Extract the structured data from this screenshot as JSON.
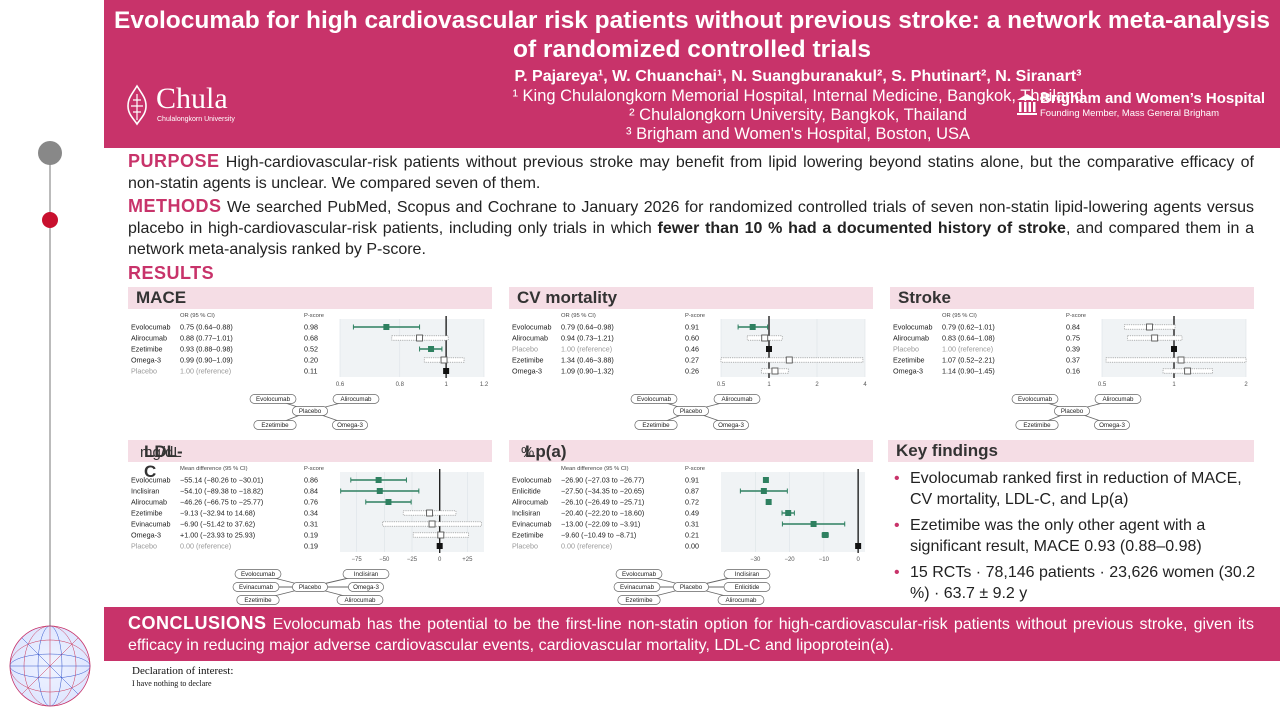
{
  "header": {
    "title": "Evolocumab for high cardiovascular risk patients without previous stroke: a network meta-analysis of randomized controlled trials",
    "authors": "P. Pajareya¹, W. Chuanchai¹, N. Suangburanakul², S. Phutinart², N. Siranart³",
    "affiliations": [
      "¹ King Chulalongkorn Memorial Hospital, Internal Medicine, Bangkok, Thailand",
      "² Chulalongkorn University, Bangkok, Thailand",
      "³ Brigham and Women's Hospital, Boston, USA"
    ],
    "logo_left": {
      "name": "Chula",
      "sub": "Chulalongkorn University"
    },
    "logo_right": {
      "name": "Brigham and Women’s Hospital",
      "sub": "Founding Member, Mass General Brigham"
    }
  },
  "purpose": {
    "heading": "PURPOSE",
    "text": "High-cardiovascular-risk patients without previous stroke may benefit from lipid lowering beyond statins alone, but the comparative efficacy of non-statin agents is unclear. We compared seven of them."
  },
  "methods": {
    "heading": "METHODS",
    "text_a": "We searched PubMed, Scopus and Cochrane to January 2026 for randomized controlled trials of seven non-statin lipid-lowering agents versus placebo in high-cardiovascular-risk patients, including only trials in which ",
    "text_bold": "fewer than 10 % had a documented history of stroke",
    "text_b": ", and compared them in a network meta-analysis ranked by P-score."
  },
  "results_heading": "RESULTS",
  "colors": {
    "accent": "#c8336a",
    "panel_header": "#f5dde5",
    "significant": "#2e8060",
    "nonsignificant": "#888888"
  },
  "chart_data": [
    {
      "id": "mace",
      "type": "forest",
      "title": "MACE",
      "unit": "",
      "col_est": "OR (95 % CI)",
      "col_p": "P-score",
      "scale": "log",
      "xlim": [
        0.6,
        1.2
      ],
      "ref": 1,
      "ticks": [
        0.6,
        0.8,
        1,
        1.2
      ],
      "rows": [
        {
          "label": "Evolocumab",
          "est": 0.75,
          "lo": 0.64,
          "hi": 0.88,
          "text": "0.75 (0.64–0.88)",
          "p": "0.98",
          "sig": true
        },
        {
          "label": "Alirocumab",
          "est": 0.88,
          "lo": 0.77,
          "hi": 1.01,
          "text": "0.88 (0.77–1.01)",
          "p": "0.68",
          "sig": false
        },
        {
          "label": "Ezetimibe",
          "est": 0.93,
          "lo": 0.88,
          "hi": 0.98,
          "text": "0.93 (0.88–0.98)",
          "p": "0.52",
          "sig": true
        },
        {
          "label": "Omega-3",
          "est": 0.99,
          "lo": 0.9,
          "hi": 1.09,
          "text": "0.99 (0.90–1.09)",
          "p": "0.20",
          "sig": false
        },
        {
          "label": "Placebo",
          "est": 1,
          "lo": 1,
          "hi": 1,
          "text": "1.00 (reference)",
          "p": "0.11",
          "ref": true
        }
      ],
      "network": {
        "nodes": [
          "Evolocumab",
          "Alirocumab",
          "Placebo",
          "Ezetimibe",
          "Omega-3"
        ],
        "center": "Placebo"
      }
    },
    {
      "id": "cvm",
      "type": "forest",
      "title": "CV mortality",
      "unit": "",
      "col_est": "OR (95 % CI)",
      "col_p": "P-score",
      "scale": "log",
      "xlim": [
        0.5,
        4
      ],
      "ref": 1,
      "ticks": [
        0.5,
        1,
        2,
        4
      ],
      "rows": [
        {
          "label": "Evolocumab",
          "est": 0.79,
          "lo": 0.64,
          "hi": 0.98,
          "text": "0.79 (0.64–0.98)",
          "p": "0.91",
          "sig": true
        },
        {
          "label": "Alirocumab",
          "est": 0.94,
          "lo": 0.73,
          "hi": 1.21,
          "text": "0.94 (0.73–1.21)",
          "p": "0.60",
          "sig": false
        },
        {
          "label": "Placebo",
          "est": 1,
          "lo": 1,
          "hi": 1,
          "text": "1.00 (reference)",
          "p": "0.46",
          "ref": true
        },
        {
          "label": "Ezetimibe",
          "est": 1.34,
          "lo": 0.46,
          "hi": 3.88,
          "text": "1.34 (0.46–3.88)",
          "p": "0.27",
          "sig": false
        },
        {
          "label": "Omega-3",
          "est": 1.09,
          "lo": 0.9,
          "hi": 1.32,
          "text": "1.09 (0.90–1.32)",
          "p": "0.26",
          "sig": false
        }
      ],
      "network": {
        "nodes": [
          "Evolocumab",
          "Alirocumab",
          "Placebo",
          "Ezetimibe",
          "Omega-3"
        ],
        "center": "Placebo"
      }
    },
    {
      "id": "stroke",
      "type": "forest",
      "title": "Stroke",
      "unit": "",
      "col_est": "OR (95 % CI)",
      "col_p": "P-score",
      "scale": "log",
      "xlim": [
        0.5,
        2
      ],
      "ref": 1,
      "ticks": [
        0.5,
        1,
        2
      ],
      "rows": [
        {
          "label": "Evolocumab",
          "est": 0.79,
          "lo": 0.62,
          "hi": 1.01,
          "text": "0.79 (0.62–1.01)",
          "p": "0.84",
          "sig": false
        },
        {
          "label": "Alirocumab",
          "est": 0.83,
          "lo": 0.64,
          "hi": 1.08,
          "text": "0.83 (0.64–1.08)",
          "p": "0.75",
          "sig": false
        },
        {
          "label": "Placebo",
          "est": 1,
          "lo": 1,
          "hi": 1,
          "text": "1.00 (reference)",
          "p": "0.39",
          "ref": true
        },
        {
          "label": "Ezetimibe",
          "est": 1.07,
          "lo": 0.52,
          "hi": 2.21,
          "text": "1.07 (0.52–2.21)",
          "p": "0.37",
          "sig": false
        },
        {
          "label": "Omega-3",
          "est": 1.14,
          "lo": 0.9,
          "hi": 1.45,
          "text": "1.14 (0.90–1.45)",
          "p": "0.16",
          "sig": false
        }
      ],
      "network": {
        "nodes": [
          "Evolocumab",
          "Alirocumab",
          "Placebo",
          "Ezetimibe",
          "Omega-3"
        ],
        "center": "Placebo"
      }
    },
    {
      "id": "ldl",
      "type": "forest",
      "title": "LDL-C",
      "unit": "mg/dL",
      "col_est": "Mean difference (95 % CI)",
      "col_p": "P-score",
      "scale": "linear",
      "xlim": [
        -90,
        40
      ],
      "ref": 0,
      "ticks": [
        -75,
        -50,
        -25,
        0,
        25
      ],
      "tick_labels": [
        "−75",
        "−50",
        "−25",
        "0",
        "+25"
      ],
      "rows": [
        {
          "label": "Evolocumab",
          "est": -55.14,
          "lo": -80.26,
          "hi": -30.01,
          "text": "−55.14 (−80.26 to −30.01)",
          "p": "0.86",
          "sig": true
        },
        {
          "label": "Inclisiran",
          "est": -54.1,
          "lo": -89.38,
          "hi": -18.82,
          "text": "−54.10 (−89.38 to −18.82)",
          "p": "0.84",
          "sig": true
        },
        {
          "label": "Alirocumab",
          "est": -46.26,
          "lo": -66.75,
          "hi": -25.77,
          "text": "−46.26 (−66.75 to −25.77)",
          "p": "0.76",
          "sig": true
        },
        {
          "label": "Ezetimibe",
          "est": -9.13,
          "lo": -32.94,
          "hi": 14.68,
          "text": "−9.13 (−32.94 to 14.68)",
          "p": "0.34",
          "sig": false
        },
        {
          "label": "Evinacumab",
          "est": -6.9,
          "lo": -51.42,
          "hi": 37.62,
          "text": "−6.90 (−51.42 to 37.62)",
          "p": "0.31",
          "sig": false
        },
        {
          "label": "Omega-3",
          "est": 1.0,
          "lo": -23.93,
          "hi": 25.93,
          "text": "+1.00 (−23.93 to 25.93)",
          "p": "0.19",
          "sig": false
        },
        {
          "label": "Placebo",
          "est": 0,
          "lo": 0,
          "hi": 0,
          "text": "0.00 (reference)",
          "p": "0.19",
          "ref": true
        }
      ],
      "network": {
        "nodes": [
          "Evolocumab",
          "Inclisiran",
          "Evinacumab",
          "Placebo",
          "Omega-3",
          "Ezetimibe",
          "Alirocumab"
        ],
        "center": "Placebo"
      }
    },
    {
      "id": "lpa",
      "type": "forest",
      "title": "Lp(a)",
      "unit": "%",
      "col_est": "Mean difference (95 % CI)",
      "col_p": "P-score",
      "scale": "linear",
      "xlim": [
        -40,
        2
      ],
      "ref": 0,
      "ticks": [
        -30,
        -20,
        -10,
        0
      ],
      "tick_labels": [
        "−30",
        "−20",
        "−10",
        "0"
      ],
      "rows": [
        {
          "label": "Evolocumab",
          "est": -26.9,
          "lo": -27.03,
          "hi": -26.77,
          "text": "−26.90 (−27.03 to −26.77)",
          "p": "0.91",
          "sig": true
        },
        {
          "label": "Enlicitide",
          "est": -27.5,
          "lo": -34.35,
          "hi": -20.65,
          "text": "−27.50 (−34.35 to −20.65)",
          "p": "0.87",
          "sig": true
        },
        {
          "label": "Alirocumab",
          "est": -26.1,
          "lo": -26.49,
          "hi": -25.71,
          "text": "−26.10 (−26.49 to −25.71)",
          "p": "0.72",
          "sig": true
        },
        {
          "label": "Inclisiran",
          "est": -20.4,
          "lo": -22.2,
          "hi": -18.6,
          "text": "−20.40 (−22.20 to −18.60)",
          "p": "0.49",
          "sig": true
        },
        {
          "label": "Evinacumab",
          "est": -13.0,
          "lo": -22.09,
          "hi": -3.91,
          "text": "−13.00 (−22.09 to −3.91)",
          "p": "0.31",
          "sig": true
        },
        {
          "label": "Ezetimibe",
          "est": -9.6,
          "lo": -10.49,
          "hi": -8.71,
          "text": "−9.60 (−10.49 to −8.71)",
          "p": "0.21",
          "sig": true
        },
        {
          "label": "Placebo",
          "est": 0,
          "lo": 0,
          "hi": 0,
          "text": "0.00 (reference)",
          "p": "0.00",
          "ref": true
        }
      ],
      "network": {
        "nodes": [
          "Evolocumab",
          "Inclisiran",
          "Evinacumab",
          "Placebo",
          "Enlicitide",
          "Ezetimibe",
          "Alirocumab"
        ],
        "center": "Placebo"
      }
    }
  ],
  "key_findings": {
    "title": "Key findings",
    "items": [
      "Evolocumab ranked first in reduction of MACE, CV mortality, LDL-C, and Lp(a)",
      "Ezetimibe was the only other agent with a significant result, MACE 0.93 (0.88–0.98)",
      "15 RCTs · 78,146 patients · 23,626 women (30.2 %) · 63.7 ± 9.2 y"
    ]
  },
  "conclusions": {
    "heading": "CONCLUSIONS",
    "text": "Evolocumab has the potential to be the first-line non-statin option for high-cardiovascular-risk patients without previous stroke, given its efficacy in reducing major adverse cardiovascular events, cardiovascular mortality, LDL-C and lipoprotein(a)."
  },
  "declaration": {
    "title": "Declaration of interest:",
    "text": "I have nothing to declare"
  }
}
